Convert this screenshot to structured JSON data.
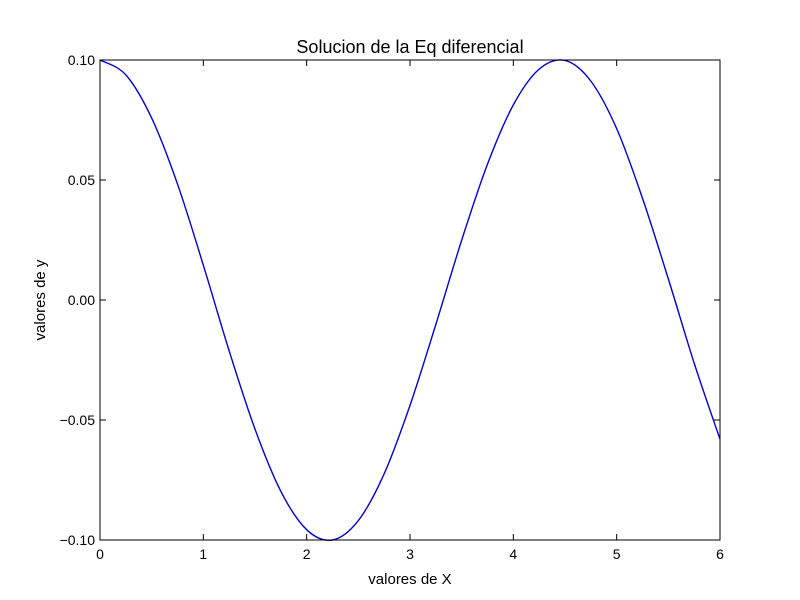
{
  "chart_data": {
    "type": "line",
    "title": "Solucion de la Eq diferencial",
    "xlabel": "valores de X",
    "ylabel": "valores de y",
    "xlim": [
      0,
      6
    ],
    "ylim": [
      -0.1,
      0.1
    ],
    "x_ticks": [
      "0",
      "1",
      "2",
      "3",
      "4",
      "5",
      "6"
    ],
    "y_ticks": [
      "−0.10",
      "−0.05",
      "0.00",
      "0.05",
      "0.10"
    ],
    "grid": false,
    "line_color": "#0000cc",
    "series": [
      {
        "x": [
          0,
          0.25,
          0.5,
          0.75,
          1,
          1.25,
          1.5,
          1.75,
          2,
          2.25,
          2.5,
          2.75,
          3,
          3.25,
          3.5,
          3.75,
          4,
          4.25,
          4.5,
          4.75,
          5,
          5.25,
          5.5,
          5.75,
          6
        ],
        "y": [
          0.1,
          0.0938,
          0.0758,
          0.0483,
          0.0145,
          -0.0212,
          -0.0538,
          -0.0797,
          -0.0957,
          -0.1,
          -0.0919,
          -0.0724,
          -0.0439,
          -0.0102,
          0.0249,
          0.0566,
          0.0813,
          0.0962,
          0.0998,
          0.0912,
          0.0714,
          0.0424,
          0.0088,
          -0.0263,
          -0.058
        ]
      }
    ]
  }
}
